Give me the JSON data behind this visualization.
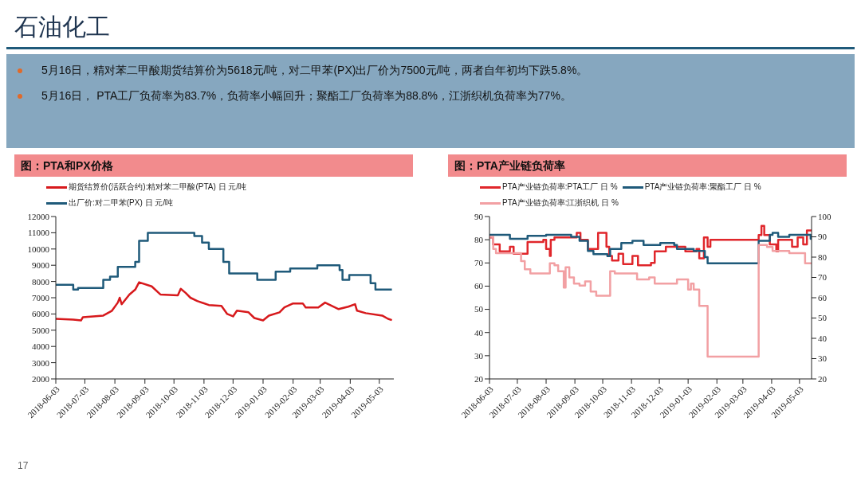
{
  "chart_data": [
    {
      "type": "other",
      "title": "石油化工",
      "annotations": [
        "5月16日，精对苯二甲酸期货结算价为5618元/吨，对二甲苯(PX)出厂价为7500元/吨，两者自年初均下跌5.8%。",
        "5月16日， PTA工厂负荷率为83.7%，负荷率小幅回升；聚酯工厂负荷率为88.8%，江浙织机负荷率为77%。",
        "17"
      ]
    },
    {
      "type": "line",
      "title": "图：PTA和PX价格",
      "legend": "top",
      "xlim": [
        "2018-06-03",
        "2019-05-18"
      ],
      "xticks": [
        "2018-06-03",
        "2018-07-03",
        "2018-08-03",
        "2018-09-03",
        "2018-10-03",
        "2018-11-03",
        "2018-12-03",
        "2019-01-03",
        "2019-02-03",
        "2019-03-03",
        "2019-04-03",
        "2019-05-03"
      ],
      "ylim": [
        2000,
        12000
      ],
      "yticks": [
        2000,
        3000,
        4000,
        5000,
        6000,
        7000,
        8000,
        9000,
        10000,
        11000,
        12000
      ],
      "series": [
        {
          "name": "期货结算价(活跃合约):精对苯二甲酸(PTA) 日 元/吨",
          "color": "#d7191c",
          "type": "line",
          "x": [
            "2018-06-03",
            "2018-06-21",
            "2018-06-29",
            "2018-07-01",
            "2018-07-22",
            "2018-07-31",
            "2018-08-06",
            "2018-08-08",
            "2018-08-10",
            "2018-08-18",
            "2018-08-24",
            "2018-08-28",
            "2018-09-10",
            "2018-09-19",
            "2018-10-07",
            "2018-10-10",
            "2018-10-15",
            "2018-10-20",
            "2018-10-27",
            "2018-11-08",
            "2018-11-21",
            "2018-11-27",
            "2018-12-03",
            "2018-12-07",
            "2018-12-19",
            "2018-12-25",
            "2019-01-03",
            "2019-01-09",
            "2019-01-20",
            "2019-01-25",
            "2019-02-03",
            "2019-02-13",
            "2019-02-16",
            "2019-03-01",
            "2019-03-08",
            "2019-03-22",
            "2019-04-01",
            "2019-04-08",
            "2019-04-10",
            "2019-04-19",
            "2019-05-06",
            "2019-05-12",
            "2019-05-16"
          ],
          "values": [
            5700,
            5650,
            5600,
            5800,
            5900,
            6200,
            6700,
            7000,
            6600,
            7200,
            7500,
            7950,
            7700,
            7200,
            7150,
            7550,
            7300,
            7000,
            6800,
            6550,
            6500,
            6000,
            5850,
            6200,
            6100,
            5750,
            5600,
            5900,
            6100,
            6400,
            6650,
            6650,
            6400,
            6400,
            6700,
            6300,
            6450,
            6600,
            6200,
            6050,
            5900,
            5700,
            5620
          ]
        },
        {
          "name": "出厂价:对二甲苯(PX) 日 元/吨",
          "color": "#1f5a7a",
          "type": "step",
          "x": [
            "2018-06-03",
            "2018-06-21",
            "2018-06-26",
            "2018-07-22",
            "2018-07-29",
            "2018-08-06",
            "2018-08-24",
            "2018-08-28",
            "2018-09-06",
            "2018-10-24",
            "2018-11-01",
            "2018-11-08",
            "2018-11-23",
            "2018-11-29",
            "2018-12-28",
            "2019-01-16",
            "2019-01-31",
            "2019-02-28",
            "2019-03-23",
            "2019-03-26",
            "2019-04-02",
            "2019-04-24",
            "2019-04-29",
            "2019-05-16"
          ],
          "values": [
            7800,
            7500,
            7600,
            8100,
            8300,
            8900,
            9200,
            10500,
            11000,
            10800,
            10400,
            10000,
            9200,
            8500,
            8100,
            8600,
            8800,
            9000,
            8700,
            8100,
            8400,
            7900,
            7500,
            7500
          ]
        }
      ]
    },
    {
      "type": "step",
      "title": "图：PTA产业链负荷率",
      "legend": "top",
      "xlim": [
        "2018-06-03",
        "2019-05-16"
      ],
      "xticks": [
        "2018-06-03",
        "2018-07-03",
        "2018-08-03",
        "2018-09-03",
        "2018-10-03",
        "2018-11-03",
        "2018-12-03",
        "2019-01-03",
        "2019-02-03",
        "2019-03-03",
        "2019-04-03",
        "2019-05-03"
      ],
      "ylim": [
        20,
        90
      ],
      "yticks": [
        20,
        30,
        40,
        50,
        60,
        70,
        80,
        90
      ],
      "y2lim": [
        20,
        100
      ],
      "y2ticks": [
        20,
        30,
        40,
        50,
        60,
        70,
        80,
        90,
        100
      ],
      "series": [
        {
          "name": "PTA产业链负荷率:PTA工厂 日 %",
          "color": "#e0262b",
          "x": [
            "2018-06-03",
            "2018-06-07",
            "2018-06-14",
            "2018-06-25",
            "2018-06-29",
            "2018-07-14",
            "2018-07-31",
            "2018-08-03",
            "2018-08-07",
            "2018-08-08",
            "2018-08-12",
            "2018-09-02",
            "2018-09-05",
            "2018-09-09",
            "2018-09-17",
            "2018-09-28",
            "2018-10-07",
            "2018-10-10",
            "2018-10-13",
            "2018-10-20",
            "2018-10-25",
            "2018-11-04",
            "2018-11-10",
            "2018-11-24",
            "2018-11-28",
            "2018-12-10",
            "2018-12-31",
            "2019-01-12",
            "2019-01-15",
            "2019-01-20",
            "2019-01-24",
            "2019-01-27",
            "2019-03-05",
            "2019-03-20",
            "2019-03-23",
            "2019-03-26",
            "2019-04-01",
            "2019-04-08",
            "2019-04-10",
            "2019-04-25",
            "2019-05-01",
            "2019-05-07",
            "2019-05-11",
            "2019-05-16"
          ],
          "values": [
            81,
            78,
            75,
            77,
            74,
            79,
            80,
            76,
            73,
            80,
            81,
            81,
            83,
            80,
            76,
            83,
            77,
            73,
            71,
            74,
            69.5,
            73,
            69,
            70,
            75,
            77,
            75,
            76,
            72,
            81,
            77,
            80,
            80,
            82,
            86,
            82,
            78,
            75,
            80,
            77,
            81,
            78,
            84,
            83.7
          ]
        },
        {
          "name": "PTA产业链负荷率:聚酯工厂 日 %",
          "color": "#1f5a7a",
          "axis": "y2",
          "x": [
            "2018-06-03",
            "2018-06-25",
            "2018-07-14",
            "2018-08-03",
            "2018-08-30",
            "2018-09-08",
            "2018-09-17",
            "2018-09-23",
            "2018-10-08",
            "2018-10-11",
            "2018-10-23",
            "2018-11-04",
            "2018-11-16",
            "2018-12-04",
            "2018-12-19",
            "2018-12-22",
            "2019-01-09",
            "2019-01-21",
            "2019-01-24",
            "2019-03-20",
            "2019-04-01",
            "2019-04-04",
            "2019-04-10",
            "2019-04-22",
            "2019-05-15",
            "2019-05-16"
          ],
          "values": [
            91,
            89,
            90.5,
            91,
            90,
            88,
            83,
            81.5,
            80.5,
            84,
            87,
            88,
            86,
            87,
            86,
            84,
            83,
            80,
            77,
            88,
            91,
            92,
            90,
            91,
            89,
            88.8
          ]
        },
        {
          "name": "PTA产业链负荷率:江浙织机 日 %",
          "color": "#f2a0a3",
          "axis": "y2",
          "x": [
            "2018-06-03",
            "2018-06-07",
            "2018-06-10",
            "2018-07-01",
            "2018-07-07",
            "2018-07-11",
            "2018-07-17",
            "2018-08-03",
            "2018-08-07",
            "2018-08-12",
            "2018-08-16",
            "2018-08-22",
            "2018-08-24",
            "2018-08-28",
            "2018-09-02",
            "2018-09-08",
            "2018-09-14",
            "2018-09-20",
            "2018-09-26",
            "2018-10-11",
            "2018-10-16",
            "2018-11-07",
            "2018-11-09",
            "2018-11-19",
            "2018-11-22",
            "2018-11-28",
            "2018-12-22",
            "2019-01-02",
            "2019-01-03",
            "2019-01-06",
            "2019-01-09",
            "2019-01-15",
            "2019-01-24",
            "2019-03-20",
            "2019-03-29",
            "2019-04-04",
            "2019-04-22",
            "2019-05-09",
            "2019-05-16"
          ],
          "values": [
            90,
            84,
            82,
            82,
            78,
            74,
            72,
            72,
            77,
            76,
            73,
            65,
            75,
            70,
            67,
            66,
            68,
            63,
            61,
            73,
            72,
            72,
            69,
            69,
            70,
            67,
            69,
            69,
            64,
            67,
            64,
            56,
            31,
            86,
            85,
            83,
            82,
            77,
            77
          ]
        }
      ]
    }
  ]
}
